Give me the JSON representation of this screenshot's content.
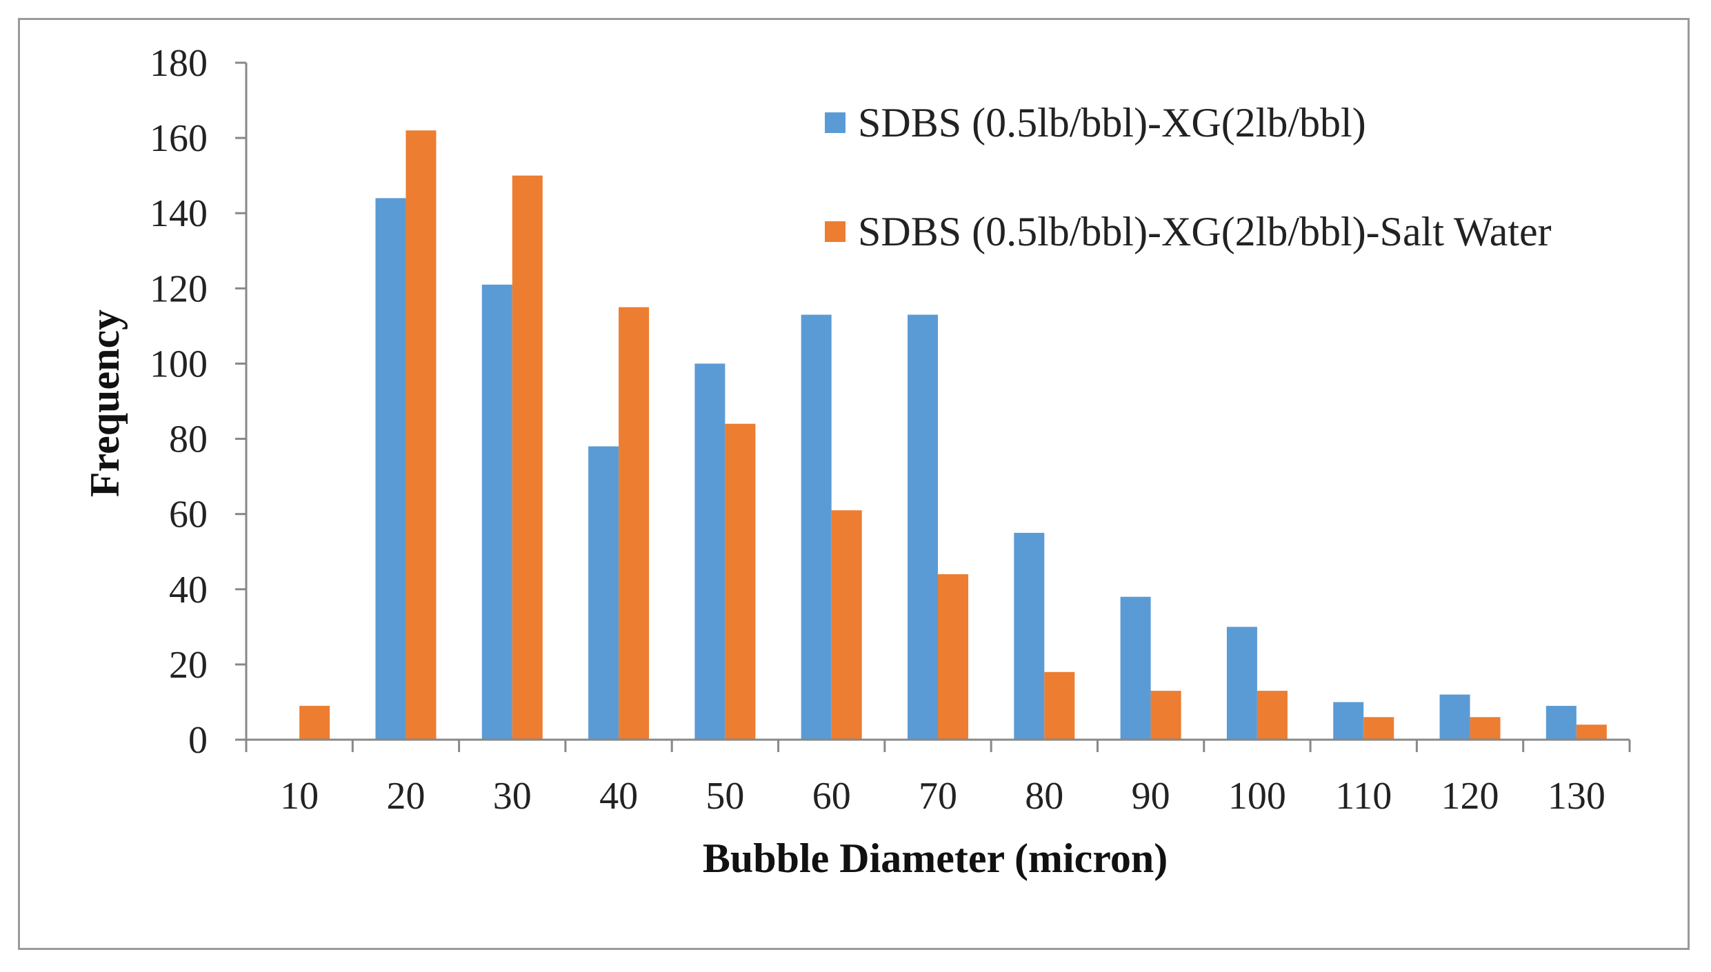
{
  "chart_data": {
    "type": "bar",
    "title": "",
    "xlabel": "Bubble Diameter (micron)",
    "ylabel": "Frequency",
    "categories": [
      "10",
      "20",
      "30",
      "40",
      "50",
      "60",
      "70",
      "80",
      "90",
      "100",
      "110",
      "120",
      "130"
    ],
    "series": [
      {
        "name": "SDBS (0.5lb/bbl)-XG(2lb/bbl)",
        "color": "#5b9bd5",
        "values": [
          0,
          144,
          121,
          78,
          100,
          113,
          113,
          55,
          38,
          30,
          10,
          12,
          9
        ]
      },
      {
        "name": "SDBS (0.5lb/bbl)-XG(2lb/bbl)-Salt Water",
        "color": "#ed7d31",
        "values": [
          9,
          162,
          150,
          115,
          84,
          61,
          44,
          18,
          13,
          13,
          6,
          6,
          4
        ]
      }
    ],
    "ylim": [
      0,
      180
    ],
    "yticks": [
      "0",
      "20",
      "40",
      "60",
      "80",
      "100",
      "120",
      "140",
      "160",
      "180"
    ],
    "grid": false,
    "legend_position": "top-right"
  }
}
